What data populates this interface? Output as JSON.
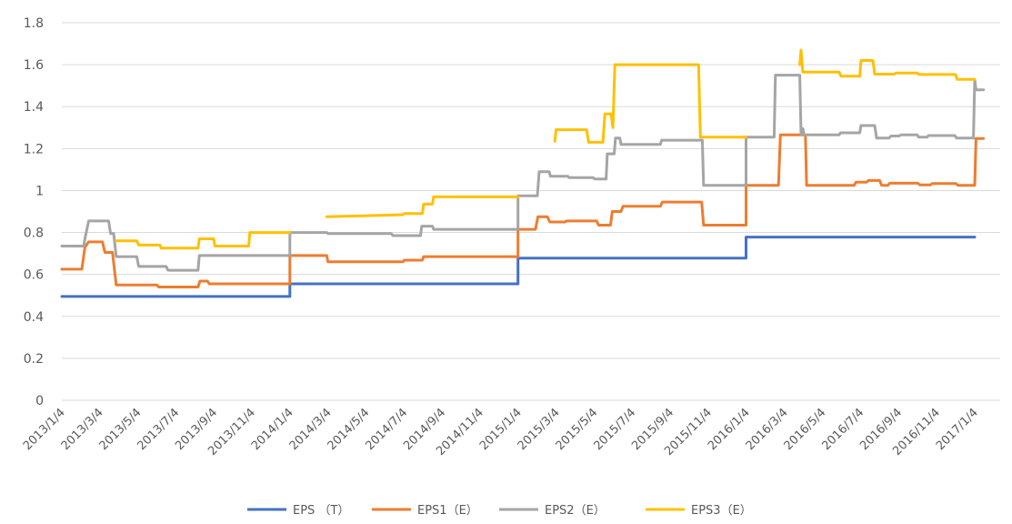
{
  "chart_data": {
    "type": "line",
    "title": "",
    "xlabel": "",
    "ylabel": "",
    "ylim": [
      0,
      1.8
    ],
    "yticks": [
      0,
      0.2,
      0.4,
      0.6,
      0.8,
      1,
      1.2,
      1.4,
      1.6,
      1.8
    ],
    "ytick_labels": [
      "0",
      "0.2",
      "0.4",
      "0.6",
      "0.8",
      "1",
      "1.2",
      "1.4",
      "1.6",
      "1.8"
    ],
    "x_range": [
      "2013-01-04",
      "2017-01-04"
    ],
    "x_tick_labels": [
      "2013/1/4",
      "2013/3/4",
      "2013/5/4",
      "2013/7/4",
      "2013/9/4",
      "2013/11/4",
      "2014/1/4",
      "2014/3/4",
      "2014/5/4",
      "2014/7/4",
      "2014/9/4",
      "2014/11/4",
      "2015/1/4",
      "2015/3/4",
      "2015/5/4",
      "2015/7/4",
      "2015/9/4",
      "2015/11/4",
      "2016/1/4",
      "2016/3/4",
      "2016/5/4",
      "2016/7/4",
      "2016/9/4",
      "2016/11/4",
      "2017/1/4"
    ],
    "grid": true,
    "legend_position": "bottom",
    "series": [
      {
        "name": "EPS （T）",
        "color": "#4472C4",
        "points": [
          [
            "2013-01-04",
            0.495
          ],
          [
            "2014-01-04",
            0.495
          ],
          [
            "2014-01-04",
            0.555
          ],
          [
            "2015-01-04",
            0.555
          ],
          [
            "2015-01-04",
            0.678
          ],
          [
            "2016-01-04",
            0.678
          ],
          [
            "2016-01-04",
            0.778
          ],
          [
            "2017-01-04",
            0.778
          ]
        ]
      },
      {
        "name": "EPS1（E）",
        "color": "#ED7D31",
        "points": [
          [
            "2013-01-04",
            0.625
          ],
          [
            "2013-02-05",
            0.625
          ],
          [
            "2013-02-10",
            0.73
          ],
          [
            "2013-02-16",
            0.755
          ],
          [
            "2013-03-10",
            0.755
          ],
          [
            "2013-03-14",
            0.705
          ],
          [
            "2013-03-26",
            0.705
          ],
          [
            "2013-04-01",
            0.55
          ],
          [
            "2013-06-05",
            0.55
          ],
          [
            "2013-06-08",
            0.54
          ],
          [
            "2013-08-10",
            0.54
          ],
          [
            "2013-08-13",
            0.568
          ],
          [
            "2013-08-25",
            0.568
          ],
          [
            "2013-08-28",
            0.555
          ],
          [
            "2014-01-04",
            0.555
          ],
          [
            "2014-01-04",
            0.69
          ],
          [
            "2014-03-04",
            0.69
          ],
          [
            "2014-03-06",
            0.66
          ],
          [
            "2014-07-04",
            0.66
          ],
          [
            "2014-07-06",
            0.668
          ],
          [
            "2014-08-04",
            0.668
          ],
          [
            "2014-08-06",
            0.685
          ],
          [
            "2015-01-04",
            0.685
          ],
          [
            "2015-01-04",
            0.815
          ],
          [
            "2015-02-01",
            0.815
          ],
          [
            "2015-02-05",
            0.875
          ],
          [
            "2015-02-20",
            0.875
          ],
          [
            "2015-02-24",
            0.85
          ],
          [
            "2015-03-20",
            0.85
          ],
          [
            "2015-03-23",
            0.855
          ],
          [
            "2015-05-10",
            0.855
          ],
          [
            "2015-05-13",
            0.835
          ],
          [
            "2015-06-01",
            0.835
          ],
          [
            "2015-06-04",
            0.9
          ],
          [
            "2015-06-18",
            0.9
          ],
          [
            "2015-06-21",
            0.925
          ],
          [
            "2015-08-20",
            0.925
          ],
          [
            "2015-08-23",
            0.945
          ],
          [
            "2015-10-25",
            0.945
          ],
          [
            "2015-10-28",
            0.835
          ],
          [
            "2016-01-04",
            0.835
          ],
          [
            "2016-01-04",
            1.025
          ],
          [
            "2016-02-25",
            1.025
          ],
          [
            "2016-02-28",
            1.265
          ],
          [
            "2016-04-08",
            1.265
          ],
          [
            "2016-04-10",
            1.025
          ],
          [
            "2016-06-25",
            1.025
          ],
          [
            "2016-06-28",
            1.04
          ],
          [
            "2016-07-15",
            1.04
          ],
          [
            "2016-07-18",
            1.048
          ],
          [
            "2016-08-05",
            1.048
          ],
          [
            "2016-08-08",
            1.025
          ],
          [
            "2016-08-18",
            1.025
          ],
          [
            "2016-08-21",
            1.035
          ],
          [
            "2016-10-05",
            1.035
          ],
          [
            "2016-10-08",
            1.027
          ],
          [
            "2016-10-25",
            1.027
          ],
          [
            "2016-10-28",
            1.033
          ],
          [
            "2016-12-05",
            1.033
          ],
          [
            "2016-12-08",
            1.025
          ],
          [
            "2017-01-04",
            1.025
          ],
          [
            "2017-01-06",
            1.248
          ],
          [
            "2017-01-18",
            1.248
          ]
        ]
      },
      {
        "name": "EPS2（E）",
        "color": "#A5A5A5",
        "points": [
          [
            "2013-01-04",
            0.735
          ],
          [
            "2013-02-08",
            0.735
          ],
          [
            "2013-02-10",
            0.77
          ],
          [
            "2013-02-16",
            0.855
          ],
          [
            "2013-03-20",
            0.855
          ],
          [
            "2013-03-23",
            0.795
          ],
          [
            "2013-03-28",
            0.795
          ],
          [
            "2013-04-01",
            0.685
          ],
          [
            "2013-05-04",
            0.685
          ],
          [
            "2013-05-07",
            0.638
          ],
          [
            "2013-06-20",
            0.638
          ],
          [
            "2013-06-23",
            0.62
          ],
          [
            "2013-08-10",
            0.62
          ],
          [
            "2013-08-12",
            0.69
          ],
          [
            "2014-01-04",
            0.69
          ],
          [
            "2014-01-04",
            0.8
          ],
          [
            "2014-03-04",
            0.8
          ],
          [
            "2014-03-06",
            0.795
          ],
          [
            "2014-06-15",
            0.795
          ],
          [
            "2014-06-18",
            0.785
          ],
          [
            "2014-08-01",
            0.785
          ],
          [
            "2014-08-03",
            0.83
          ],
          [
            "2014-08-20",
            0.83
          ],
          [
            "2014-08-22",
            0.815
          ],
          [
            "2015-01-04",
            0.815
          ],
          [
            "2015-01-04",
            0.975
          ],
          [
            "2015-02-04",
            0.975
          ],
          [
            "2015-02-07",
            1.09
          ],
          [
            "2015-02-23",
            1.09
          ],
          [
            "2015-02-25",
            1.068
          ],
          [
            "2015-03-25",
            1.068
          ],
          [
            "2015-03-27",
            1.062
          ],
          [
            "2015-05-04",
            1.062
          ],
          [
            "2015-05-07",
            1.055
          ],
          [
            "2015-05-25",
            1.055
          ],
          [
            "2015-05-27",
            1.175
          ],
          [
            "2015-06-07",
            1.175
          ],
          [
            "2015-06-09",
            1.25
          ],
          [
            "2015-06-16",
            1.25
          ],
          [
            "2015-06-18",
            1.22
          ],
          [
            "2015-08-20",
            1.22
          ],
          [
            "2015-08-22",
            1.24
          ],
          [
            "2015-10-26",
            1.24
          ],
          [
            "2015-10-28",
            1.025
          ],
          [
            "2016-01-04",
            1.025
          ],
          [
            "2016-01-04",
            1.255
          ],
          [
            "2016-02-18",
            1.255
          ],
          [
            "2016-02-20",
            1.55
          ],
          [
            "2016-03-30",
            1.55
          ],
          [
            "2016-04-01",
            1.265
          ],
          [
            "2016-04-04",
            1.295
          ],
          [
            "2016-04-06",
            1.265
          ],
          [
            "2016-06-01",
            1.265
          ],
          [
            "2016-06-03",
            1.275
          ],
          [
            "2016-07-04",
            1.275
          ],
          [
            "2016-07-06",
            1.31
          ],
          [
            "2016-07-28",
            1.31
          ],
          [
            "2016-07-31",
            1.25
          ],
          [
            "2016-08-20",
            1.25
          ],
          [
            "2016-08-23",
            1.26
          ],
          [
            "2016-09-05",
            1.26
          ],
          [
            "2016-09-08",
            1.265
          ],
          [
            "2016-10-04",
            1.265
          ],
          [
            "2016-10-06",
            1.255
          ],
          [
            "2016-10-20",
            1.255
          ],
          [
            "2016-10-22",
            1.262
          ],
          [
            "2016-12-03",
            1.262
          ],
          [
            "2016-12-06",
            1.25
          ],
          [
            "2017-01-02",
            1.25
          ],
          [
            "2017-01-04",
            1.53
          ],
          [
            "2017-01-06",
            1.48
          ],
          [
            "2017-01-18",
            1.48
          ]
        ]
      },
      {
        "name": "EPS3（E）",
        "color": "#FFC000",
        "segments": [
          [
            [
              "2013-04-01",
              0.76
            ],
            [
              "2013-05-04",
              0.76
            ],
            [
              "2013-05-07",
              0.74
            ],
            [
              "2013-06-10",
              0.74
            ],
            [
              "2013-06-12",
              0.725
            ],
            [
              "2013-08-10",
              0.725
            ],
            [
              "2013-08-12",
              0.77
            ],
            [
              "2013-09-04",
              0.77
            ],
            [
              "2013-09-06",
              0.735
            ],
            [
              "2013-10-30",
              0.735
            ],
            [
              "2013-11-01",
              0.8
            ],
            [
              "2014-01-04",
              0.8
            ]
          ],
          [
            [
              "2014-03-04",
              0.875
            ],
            [
              "2014-07-04",
              0.885
            ],
            [
              "2014-07-06",
              0.89
            ],
            [
              "2014-08-04",
              0.89
            ],
            [
              "2014-08-06",
              0.935
            ],
            [
              "2014-08-20",
              0.935
            ],
            [
              "2014-08-22",
              0.97
            ],
            [
              "2015-01-04",
              0.97
            ]
          ],
          [
            [
              "2015-03-04",
              1.235
            ],
            [
              "2015-03-06",
              1.29
            ],
            [
              "2015-04-24",
              1.29
            ],
            [
              "2015-04-27",
              1.23
            ],
            [
              "2015-05-20",
              1.23
            ],
            [
              "2015-05-23",
              1.365
            ],
            [
              "2015-06-02",
              1.365
            ],
            [
              "2015-06-05",
              1.3
            ],
            [
              "2015-06-08",
              1.6
            ],
            [
              "2015-10-20",
              1.6
            ],
            [
              "2015-10-23",
              1.255
            ],
            [
              "2016-01-04",
              1.255
            ]
          ],
          [
            [
              "2016-03-30",
              1.6
            ],
            [
              "2016-04-01",
              1.67
            ],
            [
              "2016-04-04",
              1.565
            ],
            [
              "2016-06-01",
              1.565
            ],
            [
              "2016-06-04",
              1.545
            ],
            [
              "2016-07-04",
              1.545
            ],
            [
              "2016-07-06",
              1.62
            ],
            [
              "2016-07-25",
              1.62
            ],
            [
              "2016-07-28",
              1.555
            ],
            [
              "2016-08-28",
              1.555
            ],
            [
              "2016-08-31",
              1.56
            ],
            [
              "2016-10-04",
              1.56
            ],
            [
              "2016-10-07",
              1.553
            ],
            [
              "2016-12-04",
              1.553
            ],
            [
              "2016-12-07",
              1.53
            ],
            [
              "2017-01-04",
              1.53
            ]
          ]
        ]
      }
    ]
  }
}
